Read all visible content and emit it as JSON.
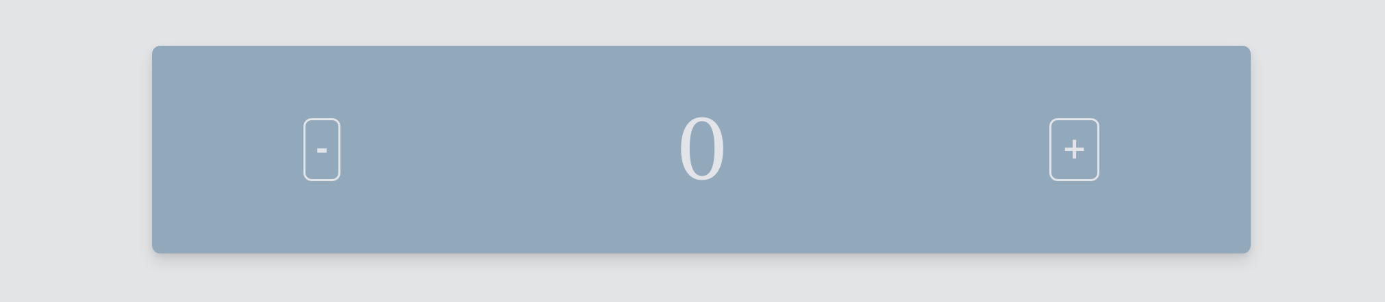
{
  "counter": {
    "decrement_label": "-",
    "value": "0",
    "increment_label": "+"
  },
  "colors": {
    "page_background": "#e3e4e6",
    "card_background": "#92a9bc",
    "foreground": "#e2e4e8"
  }
}
